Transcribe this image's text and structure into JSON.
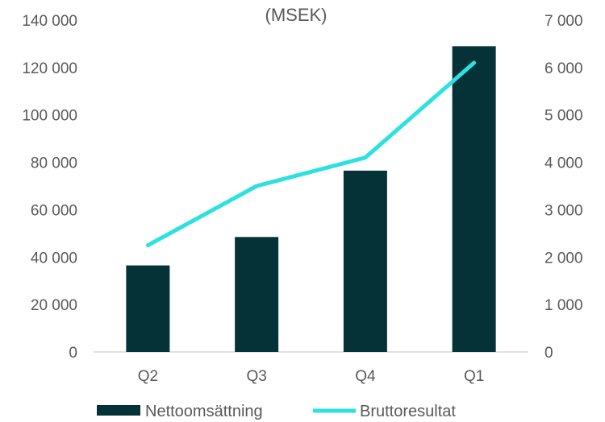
{
  "chart_data": {
    "type": "bar+line",
    "title": "(MSEK)",
    "categories": [
      "Q2",
      "Q3",
      "Q4",
      "Q1"
    ],
    "series": [
      {
        "name": "Nettoomsättning",
        "type": "bar",
        "axis": "left",
        "color": "#053236",
        "values": [
          36500,
          48500,
          76500,
          129000
        ]
      },
      {
        "name": "Bruttoresultat",
        "type": "line",
        "axis": "right",
        "color": "#2ee0e0",
        "values": [
          2250,
          3500,
          4100,
          6100
        ]
      }
    ],
    "y_left": {
      "min": 0,
      "max": 140000,
      "step": 20000,
      "tick_labels": [
        "0",
        "20 000",
        "40 000",
        "60 000",
        "80 000",
        "100 000",
        "120 000",
        "140 000"
      ]
    },
    "y_right": {
      "min": 0,
      "max": 7000,
      "step": 1000,
      "tick_labels": [
        "0",
        "1 000",
        "2 000",
        "3 000",
        "4 000",
        "5 000",
        "6 000",
        "7 000"
      ]
    },
    "grid": false,
    "legend": "bottom"
  }
}
